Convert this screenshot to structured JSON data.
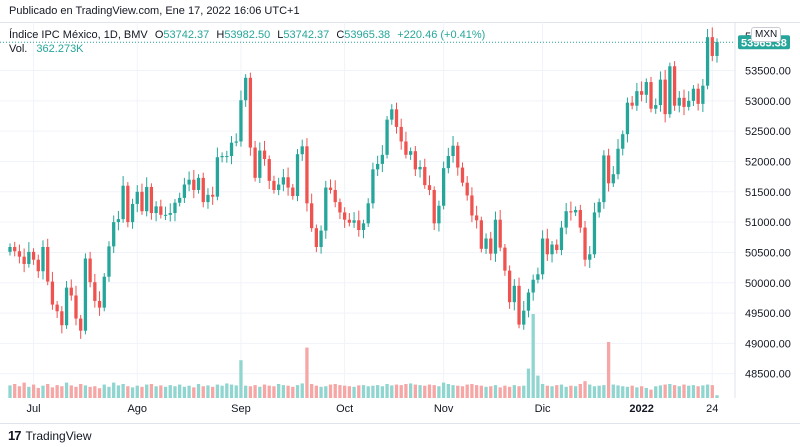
{
  "published": "Publicado en TradingView.com, Ene 17, 2022 16:06 UTC+1",
  "legend": {
    "symbol": "Índice IPC México, 1D, BMV",
    "o_label": "O",
    "o": "53742.37",
    "h_label": "H",
    "h": "53982.50",
    "l_label": "L",
    "l": "53742.37",
    "c_label": "C",
    "c": "53965.38",
    "change": "+220.46 (+0.41%)",
    "vol_label": "Vol.",
    "vol": "362.273K"
  },
  "currency": "MXN",
  "footer": {
    "brand": "TradingView",
    "logo": "17"
  },
  "colors": {
    "up": "#26a69a",
    "down": "#ef5350",
    "up_vol": "#90d5cf",
    "down_vol": "#f5a6a5",
    "grid": "#f0f3fa",
    "last_price_bg": "#26a69a"
  },
  "chart_data": {
    "type": "candlestick",
    "last_price": 53965.38,
    "last_price_label": "53965.38",
    "y_ticks": [
      48500,
      49000,
      49500,
      50000,
      50500,
      51000,
      51500,
      52000,
      52500,
      53000,
      53500
    ],
    "y_tick_labels": [
      "48500.00",
      "49000.00",
      "49500.00",
      "50000.00",
      "50500.00",
      "51000.00",
      "51500.00",
      "52000.00",
      "52500.00",
      "53000.00",
      "53500.00"
    ],
    "top_tick_partial": "54",
    "ylim": [
      48100,
      54300
    ],
    "x_ticks": [
      {
        "label": "Jul",
        "i": 5
      },
      {
        "label": "Ago",
        "i": 27
      },
      {
        "label": "Sep",
        "i": 49
      },
      {
        "label": "Oct",
        "i": 71
      },
      {
        "label": "Nov",
        "i": 92
      },
      {
        "label": "Dic",
        "i": 113
      },
      {
        "label": "2022",
        "i": 134
      },
      {
        "label": "24",
        "i": 149
      }
    ],
    "grid": true,
    "legend": "top-left",
    "closes": [
      50590,
      50520,
      50430,
      50310,
      50510,
      50380,
      50190,
      50590,
      50020,
      49640,
      49530,
      49300,
      49920,
      49790,
      49410,
      49210,
      50400,
      50010,
      49700,
      49590,
      50100,
      50600,
      51000,
      51050,
      51600,
      51000,
      51300,
      51500,
      51180,
      51580,
      51150,
      51260,
      51120,
      51120,
      51150,
      51320,
      51400,
      51620,
      51700,
      51530,
      51730,
      51330,
      51450,
      51420,
      52070,
      52090,
      52090,
      52310,
      52330,
      53010,
      53380,
      52230,
      51730,
      52180,
      52040,
      51680,
      51530,
      51620,
      51740,
      51570,
      51430,
      52120,
      52250,
      51310,
      50900,
      50590,
      50860,
      51570,
      51530,
      51330,
      51160,
      51040,
      50990,
      51030,
      50870,
      50980,
      51310,
      51870,
      51960,
      52110,
      52690,
      52860,
      52570,
      52330,
      52110,
      52170,
      51870,
      51910,
      51610,
      51530,
      50980,
      51270,
      51890,
      52090,
      52260,
      51900,
      51650,
      51440,
      51110,
      51030,
      50560,
      50730,
      50480,
      51040,
      50580,
      50200,
      49680,
      49950,
      49310,
      49540,
      49840,
      50050,
      50140,
      50730,
      50470,
      50630,
      50540,
      50910,
      51180,
      51160,
      51200,
      50910,
      50380,
      50470,
      51160,
      51330,
      52100,
      51640,
      51790,
      52210,
      52450,
      52970,
      52920,
      53160,
      53100,
      53310,
      52870,
      52930,
      53350,
      52780,
      53570,
      52920,
      53050,
      52900,
      53000,
      53200,
      52950,
      53250,
      54050,
      53740,
      53970
    ],
    "opens": [
      50510,
      50590,
      50520,
      50430,
      50310,
      50510,
      50380,
      50190,
      50590,
      50020,
      49640,
      49530,
      49300,
      49920,
      49790,
      49410,
      49210,
      50400,
      50010,
      49700,
      49590,
      50100,
      50600,
      51000,
      51050,
      51600,
      51000,
      51300,
      51500,
      51180,
      51580,
      51150,
      51260,
      51120,
      51120,
      51150,
      51320,
      51400,
      51620,
      51700,
      51530,
      51730,
      51330,
      51450,
      51420,
      52070,
      52090,
      52090,
      52310,
      52330,
      53010,
      53380,
      52230,
      51730,
      52180,
      52040,
      51680,
      51530,
      51620,
      51740,
      51570,
      51430,
      52120,
      52250,
      51310,
      50900,
      50590,
      50860,
      51570,
      51530,
      51330,
      51160,
      51040,
      50990,
      51030,
      50870,
      50980,
      51310,
      51870,
      51960,
      52110,
      52690,
      52860,
      52570,
      52330,
      52110,
      52170,
      51870,
      51910,
      51610,
      51530,
      50980,
      51270,
      51890,
      52090,
      52260,
      51900,
      51650,
      51440,
      51110,
      51030,
      50560,
      50730,
      50480,
      51040,
      50580,
      50200,
      49680,
      49950,
      49310,
      49540,
      49840,
      50050,
      50140,
      50730,
      50470,
      50630,
      50540,
      50910,
      51180,
      51160,
      51200,
      50910,
      50380,
      50470,
      51160,
      51330,
      52100,
      51640,
      51790,
      52210,
      52450,
      52970,
      52920,
      53160,
      53100,
      53310,
      52870,
      52930,
      53350,
      52780,
      53570,
      52920,
      53050,
      52900,
      53000,
      53200,
      52950,
      53250,
      54050,
      53740
    ],
    "volumes_rel": [
      0.45,
      0.5,
      0.42,
      0.55,
      0.4,
      0.48,
      0.36,
      0.44,
      0.5,
      0.38,
      0.46,
      0.42,
      0.55,
      0.45,
      0.4,
      0.5,
      0.45,
      0.4,
      0.42,
      0.35,
      0.48,
      0.4,
      0.55,
      0.45,
      0.5,
      0.42,
      0.38,
      0.44,
      0.4,
      0.48,
      0.5,
      0.42,
      0.45,
      0.4,
      0.46,
      0.42,
      0.48,
      0.4,
      0.44,
      0.38,
      0.5,
      0.42,
      0.45,
      0.4,
      0.48,
      0.44,
      0.52,
      0.48,
      0.45,
      1.35,
      0.44,
      0.42,
      0.46,
      0.4,
      0.48,
      0.44,
      0.42,
      0.5,
      0.46,
      0.44,
      0.4,
      0.46,
      0.52,
      1.8,
      0.5,
      0.44,
      0.4,
      0.42,
      0.48,
      0.5,
      0.46,
      0.44,
      0.42,
      0.4,
      0.45,
      0.46,
      0.42,
      0.44,
      0.46,
      0.42,
      0.5,
      0.45,
      0.48,
      0.46,
      0.5,
      0.52,
      0.48,
      0.46,
      0.44,
      0.48,
      0.46,
      0.42,
      0.55,
      0.5,
      0.46,
      0.44,
      0.42,
      0.48,
      0.5,
      0.46,
      0.44,
      0.4,
      0.42,
      0.46,
      0.38,
      0.44,
      0.4,
      0.46,
      0.42,
      0.44,
      1.05,
      3.0,
      0.8,
      0.5,
      0.44,
      0.42,
      0.46,
      0.48,
      0.4,
      0.44,
      0.42,
      0.5,
      0.6,
      0.48,
      0.42,
      0.44,
      0.46,
      2.0,
      0.48,
      0.45,
      0.42,
      0.4,
      0.44,
      0.38,
      0.42,
      0.36,
      0.3,
      0.42,
      0.45,
      0.48,
      0.5,
      0.46,
      0.42,
      0.48,
      0.44,
      0.46,
      0.42,
      0.45,
      0.48,
      0.46,
      0.1
    ]
  }
}
